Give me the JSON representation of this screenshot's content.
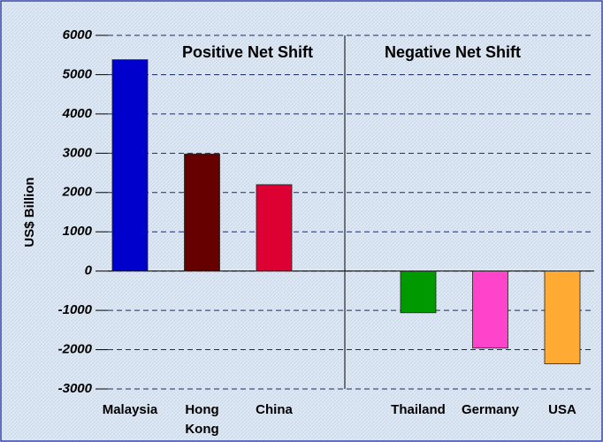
{
  "chart_data": {
    "type": "bar",
    "y_label": "US$ Billion",
    "annotations": [
      "Positive Net Shift",
      "Negative Net Shift"
    ],
    "categories": [
      "Malaysia",
      "Hong Kong",
      "China",
      "Thailand",
      "Germany",
      "USA"
    ],
    "values": [
      5380,
      2980,
      2200,
      -1060,
      -1960,
      -2360
    ],
    "colors": [
      "#0000cc",
      "#660000",
      "#dd0033",
      "#009900",
      "#ff44cc",
      "#ffaa33"
    ],
    "ylim": [
      -3000,
      6000
    ],
    "yticks": [
      -3000,
      -2000,
      -1000,
      0,
      1000,
      2000,
      3000,
      4000,
      5000,
      6000
    ],
    "grid": true
  }
}
